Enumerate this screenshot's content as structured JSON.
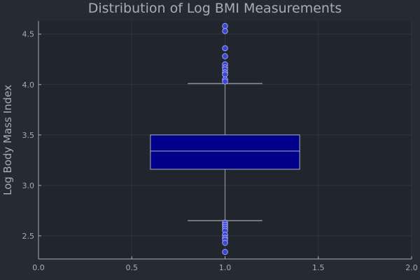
{
  "chart_data": {
    "type": "box",
    "title": "Distribution of Log BMI Measurements",
    "xlabel": "",
    "ylabel": "Log Body Mass Index",
    "xlim": [
      0,
      2
    ],
    "ylim": [
      2.27,
      4.63
    ],
    "xticks": [
      0.0,
      0.5,
      1.0,
      1.5,
      2.0
    ],
    "xtick_labels": [
      "0.0",
      "0.5",
      "1.0",
      "1.5",
      "2.0"
    ],
    "yticks": [
      2.5,
      3.0,
      3.5,
      4.0,
      4.5
    ],
    "ytick_labels": [
      "2.5",
      "3.0",
      "3.5",
      "4.0",
      "4.5"
    ],
    "grid": true,
    "legend": false,
    "box": {
      "x": 1.0,
      "width": 0.8,
      "q1": 3.16,
      "median": 3.34,
      "q3": 3.5,
      "whisker_low": 2.65,
      "whisker_high": 4.01,
      "cap_width": 0.4
    },
    "outliers": [
      4.58,
      4.53,
      4.36,
      4.28,
      4.2,
      4.17,
      4.15,
      4.12,
      4.1,
      4.05,
      4.03,
      2.63,
      2.61,
      2.59,
      2.57,
      2.55,
      2.51,
      2.48,
      2.46,
      2.43,
      2.34
    ],
    "colors": {
      "background": "#262a33",
      "plot_background": "#21252d",
      "box_fill": "#00008b",
      "box_stroke": "#a7adb8",
      "whisker": "#8b919c",
      "marker_fill": "#3b46d6",
      "marker_stroke": "#b5bcf5",
      "grid": "#313540",
      "text": "#a7adb8"
    }
  }
}
